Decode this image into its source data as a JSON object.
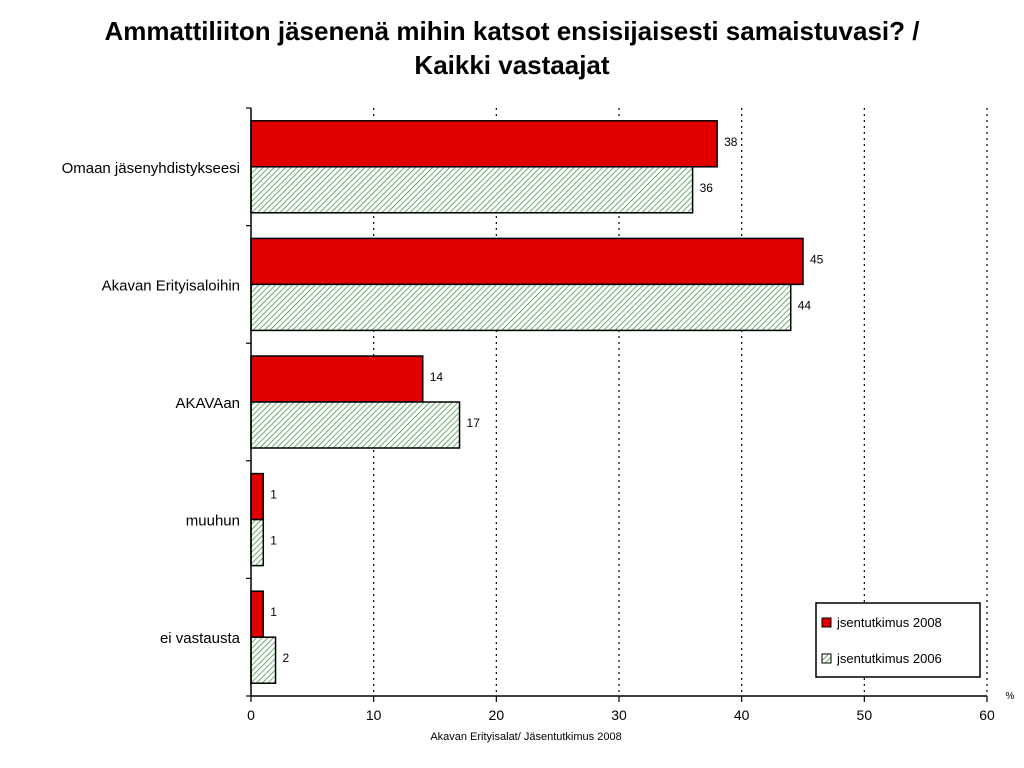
{
  "title": {
    "line1": "Ammattiliiton jäsenenä mihin katsot ensisijaisesti samaistuvasi? /",
    "line2": "Kaikki vastaajat"
  },
  "footer": "Akavan Erityisalat/ Jäsentutkimus 2008",
  "colors": {
    "series1": "#e00000",
    "series2_stripe": "#2e8b2e",
    "series2_bg": "#ffffff"
  },
  "chart_data": {
    "type": "bar",
    "orientation": "horizontal",
    "categories": [
      "Omaan jäsenyhdistykseesi",
      "Akavan Erityisaloihin",
      "AKAVAan",
      "muuhun",
      "ei vastausta"
    ],
    "series": [
      {
        "name": "jsentutkimus 2008",
        "values": [
          38,
          45,
          14,
          1,
          1
        ]
      },
      {
        "name": "jsentutkimus 2006",
        "values": [
          36,
          44,
          17,
          1,
          2
        ]
      }
    ],
    "xlim": [
      0,
      60
    ],
    "xticks": [
      "0",
      "10",
      "20",
      "30",
      "40",
      "50",
      "60"
    ],
    "unit_label": "%",
    "grid": "vertical dotted",
    "legend_position": "bottom-right"
  }
}
